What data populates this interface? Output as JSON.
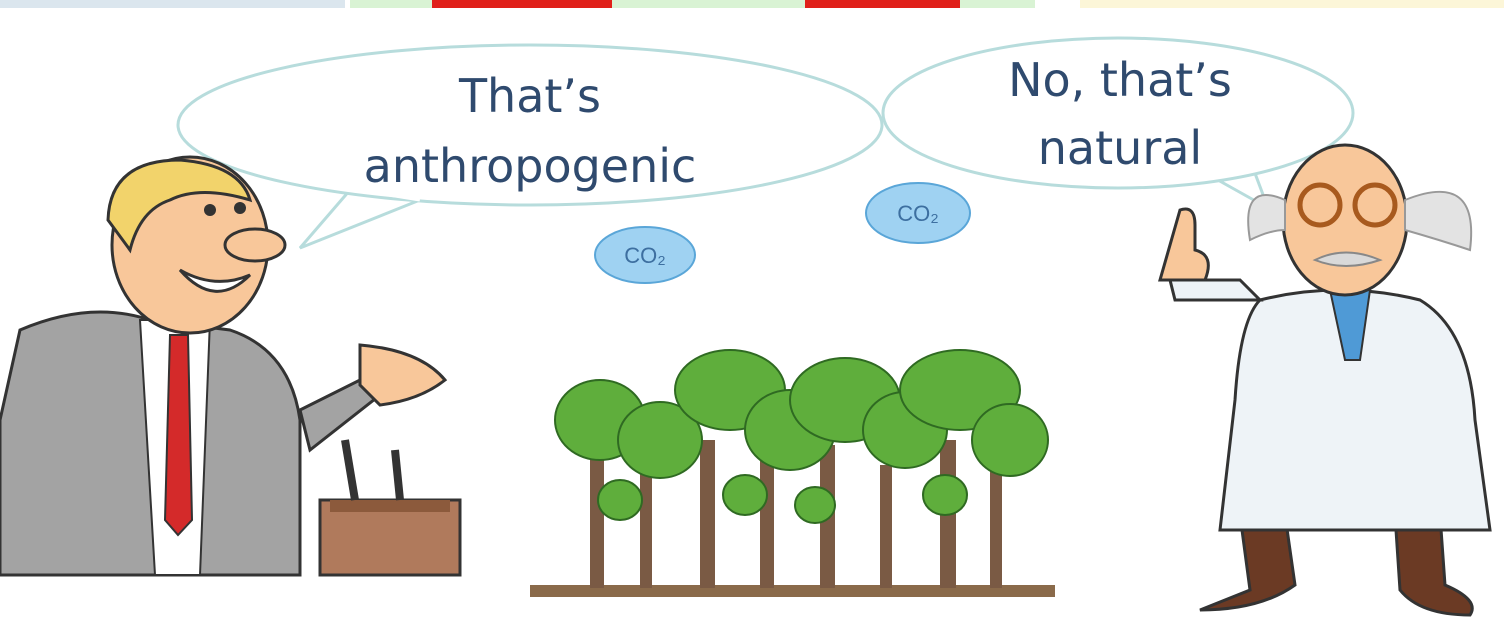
{
  "speech_bubbles": [
    {
      "lines": [
        "That’s",
        "anthropogenic"
      ]
    },
    {
      "lines": [
        "No, that’s",
        "natural"
      ]
    }
  ],
  "co2_bubbles": [
    {
      "label": "CO₂"
    },
    {
      "label": "CO₂"
    }
  ]
}
